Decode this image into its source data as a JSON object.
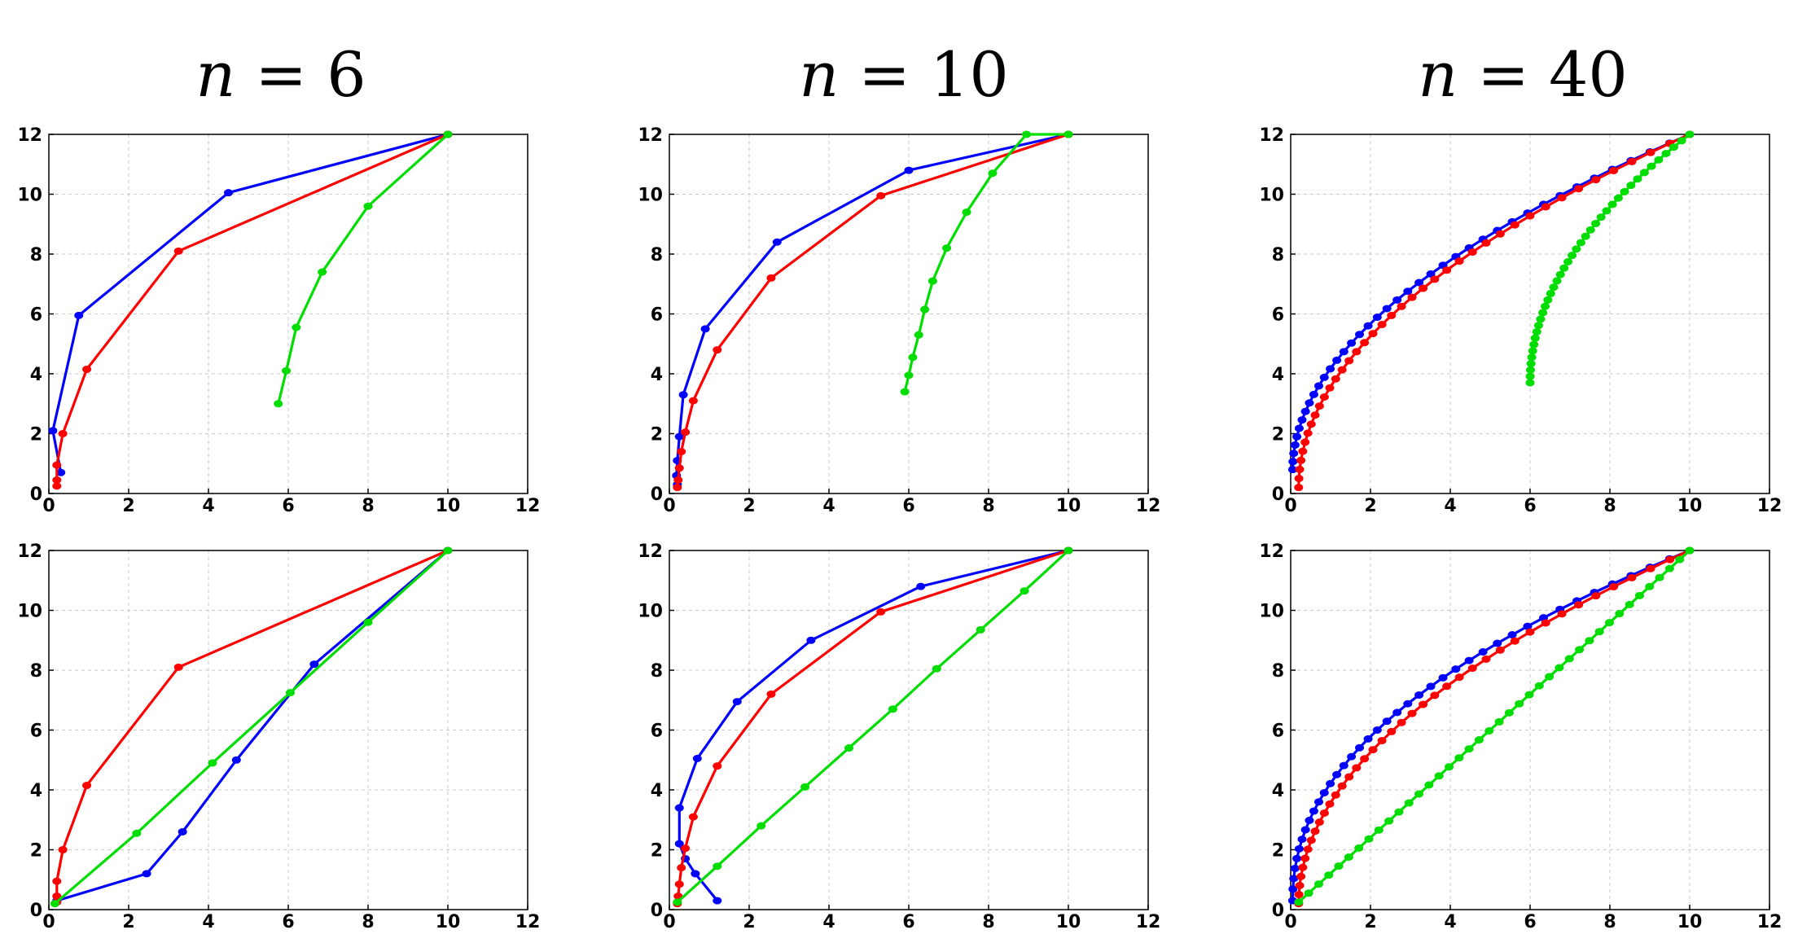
{
  "titles": [
    "n = 6",
    "n = 10",
    "n = 40"
  ],
  "title_var": "n",
  "title_ops": [
    "= 6",
    "= 10",
    "= 40"
  ],
  "colors": {
    "blue": "#0000ff",
    "red": "#ff0000",
    "green": "#00dd00"
  },
  "chart_data": [
    {
      "type": "line",
      "row": 0,
      "col": 0,
      "xlim": [
        0,
        12
      ],
      "ylim": [
        0,
        12
      ],
      "grid": true,
      "xticks": [
        0,
        2,
        4,
        6,
        8,
        10,
        12
      ],
      "yticks": [
        0,
        2,
        4,
        6,
        8,
        10,
        12
      ],
      "series": [
        {
          "color": "#0000ff",
          "x": [
            0.3,
            0.1,
            0.75,
            4.5,
            10
          ],
          "y": [
            0.7,
            2.1,
            5.95,
            10.05,
            12
          ]
        },
        {
          "color": "#ff0000",
          "x": [
            0.2,
            0.2,
            0.2,
            0.35,
            0.95,
            3.25,
            10
          ],
          "y": [
            0.25,
            0.45,
            0.95,
            2.0,
            4.15,
            8.1,
            12
          ]
        },
        {
          "color": "#00dd00",
          "x": [
            5.75,
            5.95,
            6.2,
            6.85,
            8.0,
            10
          ],
          "y": [
            3.0,
            4.1,
            5.55,
            7.4,
            9.6,
            12
          ]
        }
      ]
    },
    {
      "type": "line",
      "row": 0,
      "col": 1,
      "xlim": [
        0,
        12
      ],
      "ylim": [
        0,
        12
      ],
      "grid": true,
      "xticks": [
        0,
        2,
        4,
        6,
        8,
        10,
        12
      ],
      "yticks": [
        0,
        2,
        4,
        6,
        8,
        10,
        12
      ],
      "series": [
        {
          "color": "#0000ff",
          "x": [
            0.2,
            0.18,
            0.2,
            0.25,
            0.35,
            0.9,
            2.7,
            6.0,
            10
          ],
          "y": [
            0.3,
            0.6,
            1.1,
            1.9,
            3.3,
            5.5,
            8.4,
            10.8,
            12
          ]
        },
        {
          "color": "#ff0000",
          "x": [
            0.2,
            0.22,
            0.25,
            0.3,
            0.4,
            0.6,
            1.2,
            2.55,
            5.3,
            10
          ],
          "y": [
            0.2,
            0.45,
            0.85,
            1.4,
            2.05,
            3.1,
            4.8,
            7.2,
            9.95,
            12
          ]
        },
        {
          "color": "#00dd00",
          "x": [
            5.9,
            6.0,
            6.1,
            6.25,
            6.4,
            6.6,
            6.95,
            7.45,
            8.1,
            8.95,
            10
          ],
          "y": [
            3.4,
            3.95,
            4.55,
            5.3,
            6.15,
            7.1,
            8.2,
            9.4,
            10.7,
            12,
            12
          ]
        }
      ]
    },
    {
      "type": "line",
      "row": 0,
      "col": 2,
      "xlim": [
        0,
        12
      ],
      "ylim": [
        0,
        12
      ],
      "grid": true,
      "xticks": [
        0,
        2,
        4,
        6,
        8,
        10,
        12
      ],
      "yticks": [
        0,
        2,
        4,
        6,
        8,
        10,
        12
      ],
      "series": [
        {
          "color": "#0000ff",
          "curve": "sqrt",
          "n": 40,
          "x0": 0.05,
          "x1": 10,
          "y0": 0.8,
          "y1": 12,
          "k": 1.02
        },
        {
          "color": "#ff0000",
          "curve": "sqrt",
          "n": 40,
          "x0": 0.2,
          "x1": 10,
          "y0": 0.2,
          "y1": 12,
          "k": 1.0
        },
        {
          "color": "#00dd00",
          "curve": "green_sqrt",
          "n": 40,
          "x0": 6.0,
          "x1": 10,
          "y0": 3.7,
          "y1": 12
        }
      ]
    },
    {
      "type": "line",
      "row": 1,
      "col": 0,
      "xlim": [
        0,
        12
      ],
      "ylim": [
        0,
        12
      ],
      "grid": true,
      "xticks": [
        0,
        2,
        4,
        6,
        8,
        10,
        12
      ],
      "yticks": [
        0,
        2,
        4,
        6,
        8,
        10,
        12
      ],
      "series": [
        {
          "color": "#0000ff",
          "x": [
            0.2,
            2.45,
            3.35,
            4.7,
            6.65,
            10
          ],
          "y": [
            0.3,
            1.2,
            2.6,
            5.0,
            8.2,
            12
          ]
        },
        {
          "color": "#ff0000",
          "x": [
            0.2,
            0.2,
            0.2,
            0.35,
            0.95,
            3.25,
            10
          ],
          "y": [
            0.25,
            0.45,
            0.95,
            2.0,
            4.15,
            8.1,
            12
          ]
        },
        {
          "color": "#00dd00",
          "x": [
            0.15,
            2.2,
            4.1,
            6.05,
            8.0,
            10
          ],
          "y": [
            0.2,
            2.55,
            4.9,
            7.25,
            9.6,
            12
          ]
        }
      ]
    },
    {
      "type": "line",
      "row": 1,
      "col": 1,
      "xlim": [
        0,
        12
      ],
      "ylim": [
        0,
        12
      ],
      "grid": true,
      "xticks": [
        0,
        2,
        4,
        6,
        8,
        10,
        12
      ],
      "yticks": [
        0,
        2,
        4,
        6,
        8,
        10,
        12
      ],
      "series": [
        {
          "color": "#0000ff",
          "x": [
            1.2,
            0.65,
            0.4,
            0.25,
            0.25,
            0.7,
            1.7,
            3.55,
            6.3,
            10
          ],
          "y": [
            0.3,
            1.2,
            1.7,
            2.2,
            3.4,
            5.05,
            6.95,
            9.0,
            10.8,
            12
          ]
        },
        {
          "color": "#ff0000",
          "x": [
            0.2,
            0.22,
            0.25,
            0.3,
            0.4,
            0.6,
            1.2,
            2.55,
            5.3,
            10
          ],
          "y": [
            0.2,
            0.45,
            0.85,
            1.4,
            2.05,
            3.1,
            4.8,
            7.2,
            9.95,
            12
          ]
        },
        {
          "color": "#00dd00",
          "x": [
            0.2,
            1.2,
            2.3,
            3.4,
            4.5,
            5.6,
            6.7,
            7.8,
            8.9,
            10
          ],
          "y": [
            0.25,
            1.45,
            2.8,
            4.1,
            5.4,
            6.7,
            8.05,
            9.35,
            10.65,
            12
          ]
        }
      ]
    },
    {
      "type": "line",
      "row": 1,
      "col": 2,
      "xlim": [
        0,
        12
      ],
      "ylim": [
        0,
        12
      ],
      "grid": true,
      "xticks": [
        0,
        2,
        4,
        6,
        8,
        10,
        12
      ],
      "yticks": [
        0,
        2,
        4,
        6,
        8,
        10,
        12
      ],
      "series": [
        {
          "color": "#0000ff",
          "curve": "sqrt",
          "n": 40,
          "x0": 0.05,
          "x1": 10,
          "y0": 0.3,
          "y1": 12,
          "k": 0.93
        },
        {
          "color": "#ff0000",
          "curve": "sqrt",
          "n": 40,
          "x0": 0.2,
          "x1": 10,
          "y0": 0.2,
          "y1": 12,
          "k": 1.0
        },
        {
          "color": "#00dd00",
          "curve": "linear",
          "n": 40,
          "x0": 0.2,
          "x1": 10,
          "y0": 0.25,
          "y1": 12
        }
      ]
    }
  ]
}
